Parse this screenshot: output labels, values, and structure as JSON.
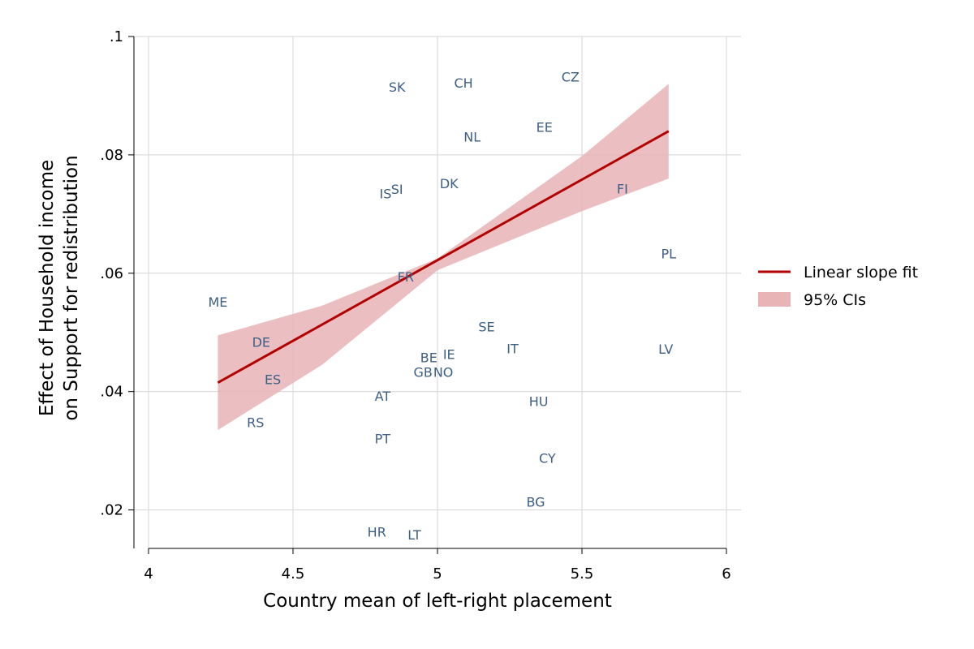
{
  "chart_data": {
    "type": "scatter",
    "xlabel": "Country mean of left-right placement",
    "ylabel_lines": [
      "Effect of Household income",
      "on Support for redistribution"
    ],
    "xlim": [
      4,
      6
    ],
    "ylim": [
      0.0135,
      0.1
    ],
    "x_ticks": [
      {
        "value": 4,
        "label": "4"
      },
      {
        "value": 4.5,
        "label": "4.5"
      },
      {
        "value": 5,
        "label": "5"
      },
      {
        "value": 5.5,
        "label": "5.5"
      },
      {
        "value": 6,
        "label": "6"
      }
    ],
    "y_ticks": [
      {
        "value": 0.02,
        "label": ".02"
      },
      {
        "value": 0.04,
        "label": ".04"
      },
      {
        "value": 0.06,
        "label": ".06"
      },
      {
        "value": 0.08,
        "label": ".08"
      },
      {
        "value": 0.1,
        "label": ".1"
      }
    ],
    "grid": true,
    "points": [
      {
        "label": "SK",
        "x": 4.86,
        "y": 0.0915
      },
      {
        "label": "CH",
        "x": 5.09,
        "y": 0.0922
      },
      {
        "label": "CZ",
        "x": 5.46,
        "y": 0.0932
      },
      {
        "label": "EE",
        "x": 5.37,
        "y": 0.0847
      },
      {
        "label": "NL",
        "x": 5.12,
        "y": 0.0831
      },
      {
        "label": "IS",
        "x": 4.82,
        "y": 0.0735
      },
      {
        "label": "SI",
        "x": 4.86,
        "y": 0.0742
      },
      {
        "label": "DK",
        "x": 5.04,
        "y": 0.0752
      },
      {
        "label": "FI",
        "x": 5.64,
        "y": 0.0743
      },
      {
        "label": "PL",
        "x": 5.8,
        "y": 0.0633
      },
      {
        "label": "FR",
        "x": 4.89,
        "y": 0.0594
      },
      {
        "label": "ME",
        "x": 4.24,
        "y": 0.0552
      },
      {
        "label": "SE",
        "x": 5.17,
        "y": 0.051
      },
      {
        "label": "DE",
        "x": 4.39,
        "y": 0.0484
      },
      {
        "label": "IT",
        "x": 5.26,
        "y": 0.0473
      },
      {
        "label": "LV",
        "x": 5.79,
        "y": 0.0472
      },
      {
        "label": "IE",
        "x": 5.04,
        "y": 0.0463
      },
      {
        "label": "BE",
        "x": 4.97,
        "y": 0.0458
      },
      {
        "label": "GB",
        "x": 4.95,
        "y": 0.0433
      },
      {
        "label": "NO",
        "x": 5.02,
        "y": 0.0433
      },
      {
        "label": "ES",
        "x": 4.43,
        "y": 0.0421
      },
      {
        "label": "AT",
        "x": 4.81,
        "y": 0.0393
      },
      {
        "label": "HU",
        "x": 5.35,
        "y": 0.0384
      },
      {
        "label": "RS",
        "x": 4.37,
        "y": 0.0348
      },
      {
        "label": "PT",
        "x": 4.81,
        "y": 0.0321
      },
      {
        "label": "CY",
        "x": 5.38,
        "y": 0.0288
      },
      {
        "label": "BG",
        "x": 5.34,
        "y": 0.0214
      },
      {
        "label": "HR",
        "x": 4.79,
        "y": 0.0163
      },
      {
        "label": "LT",
        "x": 4.92,
        "y": 0.0158
      }
    ],
    "fit_line": {
      "x": [
        4.24,
        5.8
      ],
      "y": [
        0.0415,
        0.084
      ],
      "color": "#b30000"
    },
    "ci_band": {
      "x": [
        4.24,
        4.6,
        5.0,
        5.5,
        5.8
      ],
      "upper": [
        0.0495,
        0.0545,
        0.0625,
        0.0798,
        0.092
      ],
      "lower": [
        0.0335,
        0.0445,
        0.0605,
        0.0705,
        0.076
      ],
      "color": "#e8b4b6"
    },
    "legend": {
      "position": "right",
      "entries": [
        {
          "label": "Linear slope fit",
          "kind": "line",
          "color": "#b30000"
        },
        {
          "label": "95% CIs",
          "kind": "area",
          "color": "#e8b4b6"
        }
      ]
    }
  }
}
